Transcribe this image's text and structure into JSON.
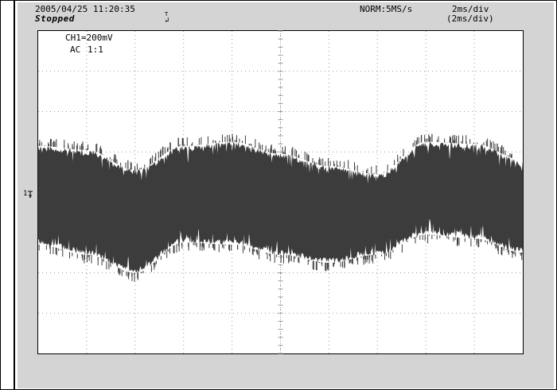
{
  "header": {
    "timestamp": "2005/04/25 11:20:35",
    "status": "Stopped",
    "sample_mode": "NORM:5MS/s",
    "timebase": "2ms/div",
    "timebase_setting": "(2ms/div)"
  },
  "channel": {
    "scale": "CH1=200mV",
    "coupling": "AC",
    "probe": "1:1",
    "ground_marker": "1"
  },
  "trigger_marker": "T",
  "colors": {
    "panel": "#d4d4d4",
    "trace": "#3c3c3c",
    "grid": "#9a9a9a"
  },
  "chart_data": {
    "type": "line",
    "xlabel": "",
    "ylabel": "",
    "divisions_x": 10,
    "divisions_y": 8,
    "x_per_div_ms": 2,
    "y_per_div_mV": 200,
    "xlim_ms": [
      0,
      20
    ],
    "ylim_div": [
      -4,
      4
    ],
    "grid": true,
    "envelope_series": {
      "x_ms": [
        0,
        2,
        4,
        6,
        8,
        10,
        12,
        14,
        16,
        18,
        20
      ],
      "upper_div": [
        1.15,
        1.05,
        0.55,
        1.15,
        1.25,
        0.95,
        0.65,
        0.45,
        1.25,
        1.2,
        0.8
      ],
      "lower_div": [
        -1.3,
        -1.55,
        -2.0,
        -1.25,
        -1.3,
        -1.55,
        -1.75,
        -1.55,
        -1.05,
        -1.15,
        -1.5
      ]
    }
  }
}
